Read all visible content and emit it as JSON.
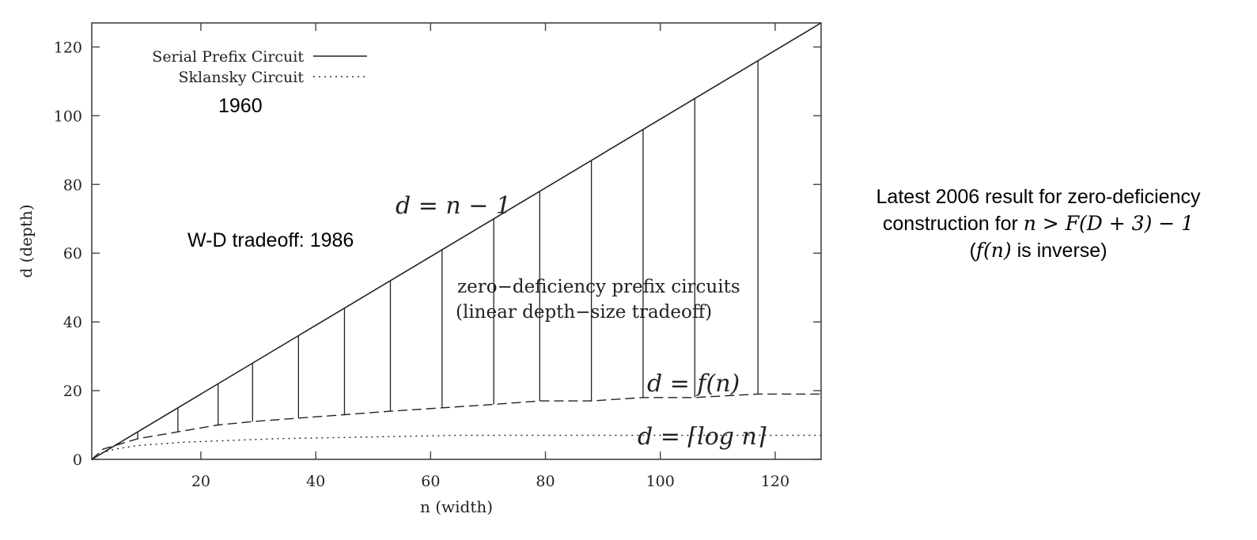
{
  "chart_data": {
    "type": "line",
    "xlabel": "n (width)",
    "ylabel": "d (depth)",
    "xlim": [
      1,
      128
    ],
    "ylim": [
      0,
      127
    ],
    "xticks": [
      20,
      40,
      60,
      80,
      100,
      120
    ],
    "yticks": [
      0,
      20,
      40,
      60,
      80,
      100,
      120
    ],
    "grid": false,
    "legend_position": "top-left",
    "series": [
      {
        "name": "Serial Prefix Circuit",
        "style": "solid",
        "x": [
          1,
          128
        ],
        "y": [
          0,
          127
        ]
      },
      {
        "name": "Sklansky Circuit",
        "style": "dotted",
        "x": [
          1,
          2,
          3,
          5,
          9,
          17,
          33,
          65,
          128
        ],
        "y": [
          0,
          1,
          2,
          3,
          4,
          5,
          6,
          7,
          7
        ]
      },
      {
        "name": "",
        "style": "dashed",
        "x": [
          1,
          3,
          9,
          16,
          23,
          29,
          37,
          45,
          53,
          62,
          71,
          79,
          88,
          97,
          106,
          117,
          128
        ],
        "y": [
          0,
          3,
          6,
          8,
          10,
          11,
          12,
          13,
          14,
          15,
          16,
          17,
          17,
          18,
          18,
          19,
          19
        ]
      }
    ],
    "vertical_segments": [
      {
        "x": 9,
        "y0": 6,
        "y1": 8
      },
      {
        "x": 16,
        "y0": 8,
        "y1": 15
      },
      {
        "x": 23,
        "y0": 10,
        "y1": 22
      },
      {
        "x": 29,
        "y0": 11,
        "y1": 28
      },
      {
        "x": 37,
        "y0": 12,
        "y1": 36
      },
      {
        "x": 45,
        "y0": 13,
        "y1": 44
      },
      {
        "x": 53,
        "y0": 14,
        "y1": 52
      },
      {
        "x": 62,
        "y0": 15,
        "y1": 61
      },
      {
        "x": 71,
        "y0": 16,
        "y1": 70
      },
      {
        "x": 79,
        "y0": 17,
        "y1": 78
      },
      {
        "x": 88,
        "y0": 17,
        "y1": 87
      },
      {
        "x": 97,
        "y0": 18,
        "y1": 96
      },
      {
        "x": 106,
        "y0": 18,
        "y1": 105
      },
      {
        "x": 117,
        "y0": 19,
        "y1": 116
      }
    ],
    "annotations": [
      {
        "id": "label_1960",
        "text": "1960"
      },
      {
        "id": "label_wd",
        "text": "W-D tradeoff: 1986"
      },
      {
        "id": "label_serial",
        "text": "d = n − 1"
      },
      {
        "id": "label_zd1",
        "text": "zero−deficiency prefix circuits"
      },
      {
        "id": "label_zd2",
        "text": "(linear depth−size tradeoff)"
      },
      {
        "id": "label_fn",
        "text": "d = f(n)"
      },
      {
        "id": "label_log",
        "text": "d = ⌈log n⌉"
      }
    ]
  },
  "side_note": {
    "line1": "Latest 2006 result for zero-deficiency",
    "line2_prefix": "construction for ",
    "line2_math": "n > F(D + 3) − 1",
    "line3_open": "(",
    "line3_math": "f(n)",
    "line3_rest": " is inverse)"
  }
}
